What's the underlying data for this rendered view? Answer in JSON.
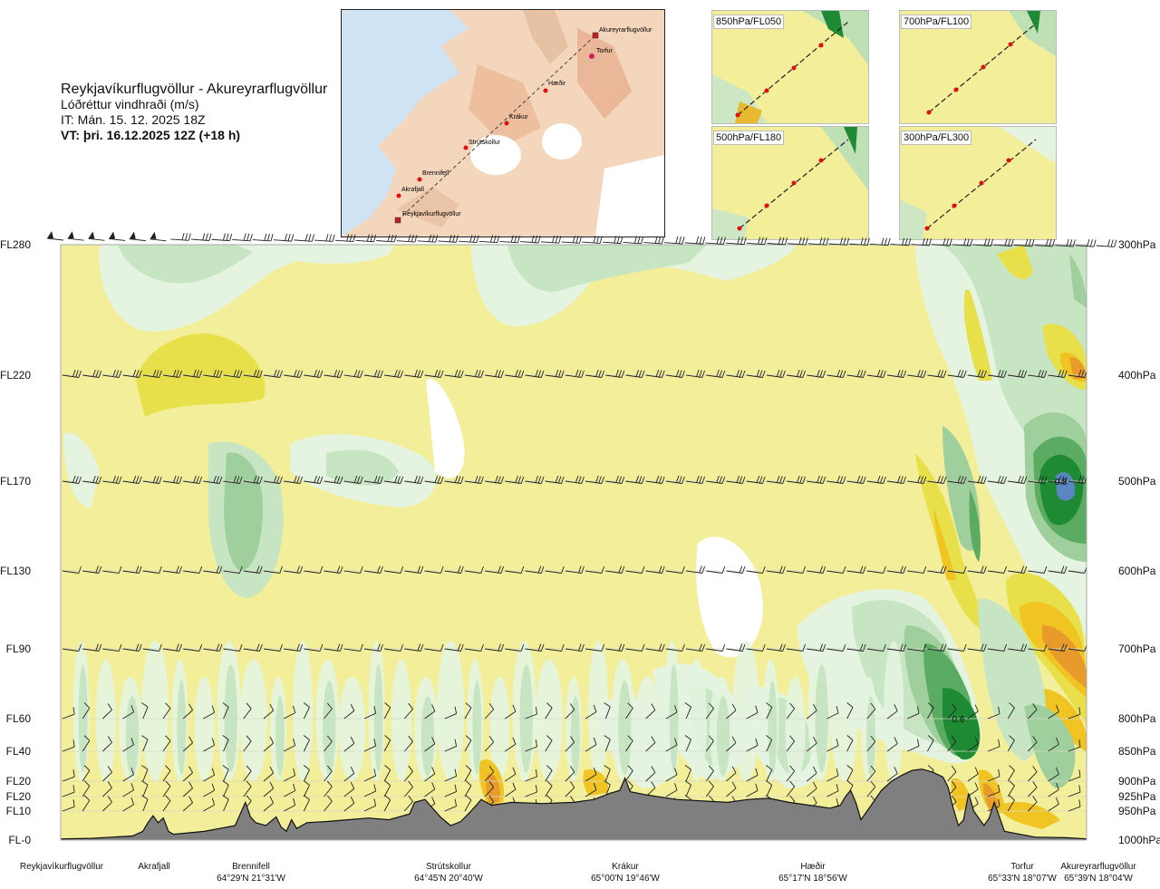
{
  "title": {
    "line1": "Reykjavíkurflugvöllur - Akureyrarflugvöllur",
    "line2": "Lóðréttur vindhraði (m/s)",
    "line3": "IT: Mán. 15. 12. 2025 18Z",
    "line4": "VT: þri. 16.12.2025 12Z (+18 h)"
  },
  "map": {
    "stations": [
      "Akureyrarflugvöllur",
      "Torfur",
      "Hæðir",
      "Krákur",
      "Strútskollur",
      "Brennifell",
      "Akrafjall",
      "Reykjavíkurflugvöllur"
    ]
  },
  "mini_maps": [
    {
      "label": "850hPa/FL050"
    },
    {
      "label": "700hPa/FL100"
    },
    {
      "label": "500hPa/FL180"
    },
    {
      "label": "300hPa/FL300"
    }
  ],
  "chart_data": {
    "type": "heatmap",
    "title": "Reykjavíkurflugvöllur - Akureyrarflugvöllur",
    "variable": "Lóðréttur vindhraði (m/s)",
    "y_left_levels": [
      {
        "label": "FL280",
        "hpa": 300
      },
      {
        "label": "FL220",
        "hpa": 400
      },
      {
        "label": "FL170",
        "hpa": 500
      },
      {
        "label": "FL130",
        "hpa": 600
      },
      {
        "label": "FL90",
        "hpa": 700
      },
      {
        "label": "FL60",
        "hpa": 800
      },
      {
        "label": "FL40",
        "hpa": 850
      },
      {
        "label": "FL20",
        "hpa": 900
      },
      {
        "label": "FL20",
        "hpa": 925
      },
      {
        "label": "FL10",
        "hpa": 950
      },
      {
        "label": "FL-0",
        "hpa": 1000
      }
    ],
    "y_right_labels": [
      "300hPa",
      "400hPa",
      "500hPa",
      "600hPa",
      "700hPa",
      "800hPa",
      "850hPa",
      "900hPa",
      "925hPa",
      "950hPa",
      "1000hPa"
    ],
    "x_locations": [
      {
        "name": "Reykjavíkurflugvöllur",
        "coord": "",
        "frac": 0.0
      },
      {
        "name": "Akrafjall",
        "coord": "",
        "frac": 0.09
      },
      {
        "name": "Brennifell",
        "coord": "64°29'N 21°31'W",
        "frac": 0.19
      },
      {
        "name": "Strútskollur",
        "coord": "64°45'N 20°40'W",
        "frac": 0.37
      },
      {
        "name": "Krákur",
        "coord": "65°00'N 19°46'W",
        "frac": 0.55
      },
      {
        "name": "Hæðir",
        "coord": "65°17'N 18°56'W",
        "frac": 0.73
      },
      {
        "name": "Torfur",
        "coord": "65°33'N 18°07'W",
        "frac": 0.93
      },
      {
        "name": "Akureyrarflugvöllur",
        "coord": "65°39'N 18°04'W",
        "frac": 1.0
      }
    ],
    "annotations": [
      {
        "text": "0.8",
        "frac_x": 0.975,
        "hpa": 500
      },
      {
        "text": "0.6",
        "frac_x": 0.875,
        "hpa": 800
      }
    ],
    "terrain_hpa": [
      [
        0,
        998
      ],
      [
        0.03,
        997
      ],
      [
        0.07,
        993
      ],
      [
        0.08,
        985
      ],
      [
        0.085,
        970
      ],
      [
        0.09,
        958
      ],
      [
        0.095,
        970
      ],
      [
        0.1,
        962
      ],
      [
        0.105,
        985
      ],
      [
        0.11,
        990
      ],
      [
        0.14,
        985
      ],
      [
        0.17,
        975
      ],
      [
        0.175,
        955
      ],
      [
        0.18,
        935
      ],
      [
        0.185,
        960
      ],
      [
        0.19,
        970
      ],
      [
        0.2,
        975
      ],
      [
        0.21,
        960
      ],
      [
        0.215,
        978
      ],
      [
        0.22,
        985
      ],
      [
        0.225,
        965
      ],
      [
        0.23,
        980
      ],
      [
        0.24,
        970
      ],
      [
        0.26,
        968
      ],
      [
        0.28,
        965
      ],
      [
        0.3,
        962
      ],
      [
        0.32,
        965
      ],
      [
        0.34,
        955
      ],
      [
        0.345,
        935
      ],
      [
        0.355,
        930
      ],
      [
        0.37,
        960
      ],
      [
        0.38,
        975
      ],
      [
        0.39,
        968
      ],
      [
        0.4,
        950
      ],
      [
        0.41,
        930
      ],
      [
        0.42,
        940
      ],
      [
        0.44,
        935
      ],
      [
        0.47,
        937
      ],
      [
        0.5,
        935
      ],
      [
        0.52,
        930
      ],
      [
        0.535,
        920
      ],
      [
        0.545,
        915
      ],
      [
        0.55,
        895
      ],
      [
        0.555,
        917
      ],
      [
        0.57,
        922
      ],
      [
        0.6,
        930
      ],
      [
        0.63,
        933
      ],
      [
        0.65,
        935
      ],
      [
        0.67,
        930
      ],
      [
        0.69,
        928
      ],
      [
        0.71,
        935
      ],
      [
        0.73,
        940
      ],
      [
        0.75,
        945
      ],
      [
        0.76,
        940
      ],
      [
        0.765,
        925
      ],
      [
        0.77,
        915
      ],
      [
        0.775,
        935
      ],
      [
        0.78,
        965
      ],
      [
        0.79,
        940
      ],
      [
        0.8,
        915
      ],
      [
        0.81,
        900
      ],
      [
        0.82,
        890
      ],
      [
        0.83,
        882
      ],
      [
        0.84,
        880
      ],
      [
        0.85,
        885
      ],
      [
        0.86,
        893
      ],
      [
        0.865,
        910
      ],
      [
        0.87,
        945
      ],
      [
        0.875,
        975
      ],
      [
        0.88,
        965
      ],
      [
        0.885,
        920
      ],
      [
        0.89,
        950
      ],
      [
        0.9,
        975
      ],
      [
        0.905,
        962
      ],
      [
        0.91,
        935
      ],
      [
        0.915,
        960
      ],
      [
        0.92,
        985
      ],
      [
        0.95,
        995
      ],
      [
        0.98,
        996
      ],
      [
        1.0,
        998
      ]
    ],
    "barb_rows_hpa": [
      300,
      400,
      500,
      600,
      700,
      800,
      850,
      900,
      925,
      950
    ],
    "colorscale": [
      "#ffffff",
      "#e4f4e0",
      "#c7e5c2",
      "#9fcf9c",
      "#5bac62",
      "#1f8a34",
      "#5a86c2",
      "#f3ee9a",
      "#e8e04a",
      "#f0c422",
      "#e89a2a"
    ]
  }
}
